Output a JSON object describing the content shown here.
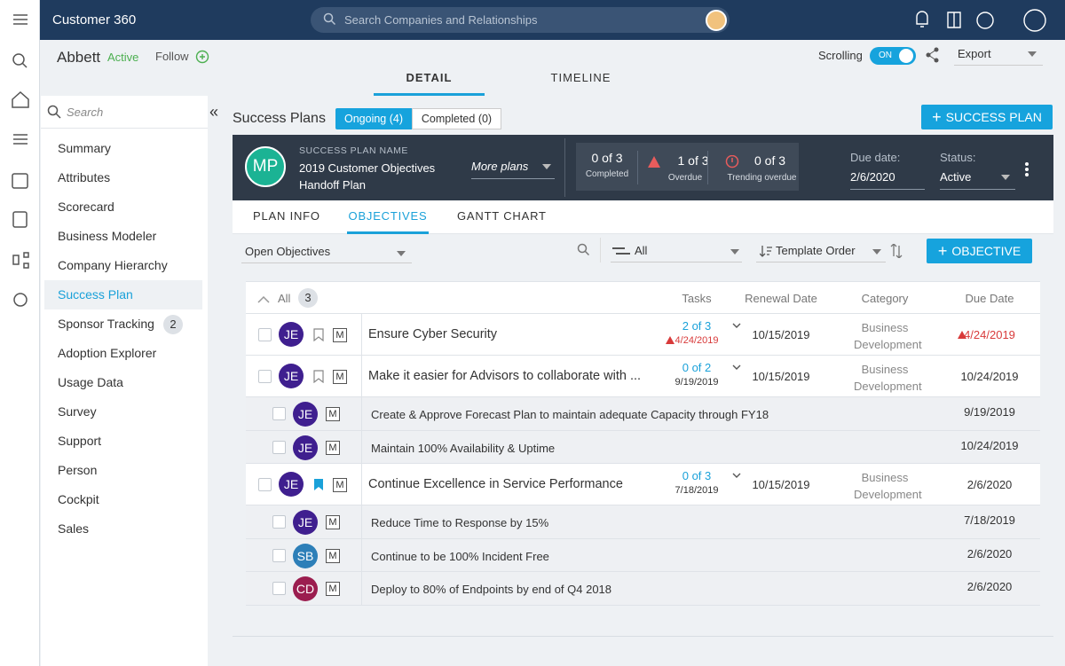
{
  "app": {
    "title": "Customer 360",
    "search_placeholder": "Search Companies and Relationships"
  },
  "company": {
    "name": "Abbett",
    "status": "Active",
    "follow": "Follow"
  },
  "scrolling": {
    "label": "Scrolling",
    "toggle": "ON"
  },
  "export": "Export",
  "tabs": [
    "DETAIL",
    "TIMELINE"
  ],
  "sidebar": {
    "search": "Search",
    "items": [
      {
        "label": "Summary"
      },
      {
        "label": "Attributes"
      },
      {
        "label": "Scorecard"
      },
      {
        "label": "Business Modeler"
      },
      {
        "label": "Company Hierarchy"
      },
      {
        "label": "Success Plan",
        "active": true
      },
      {
        "label": "Sponsor Tracking",
        "badge": 2
      },
      {
        "label": "Adoption Explorer"
      },
      {
        "label": "Usage Data"
      },
      {
        "label": "Survey"
      },
      {
        "label": "Support"
      },
      {
        "label": "Person"
      },
      {
        "label": "Cockpit"
      },
      {
        "label": "Sales"
      }
    ]
  },
  "plans": {
    "title": "Success Plans",
    "ongoing": "Ongoing (4)",
    "completed": "Completed (0)",
    "add_button": "SUCCESS PLAN"
  },
  "plan": {
    "avatar": "MP",
    "name_label": "SUCCESS PLAN NAME",
    "name": "2019 Customer Objectives Handoff Plan",
    "more": "More plans",
    "stats": [
      {
        "value": "0 of 3",
        "label": "Completed"
      },
      {
        "value": "1 of 3",
        "label": "Overdue"
      },
      {
        "value": "0 of 3",
        "label": "Trending overdue"
      }
    ],
    "due_label": "Due date:",
    "due": "2/6/2020",
    "status_label": "Status:",
    "status": "Active"
  },
  "subtabs": [
    "PLAN INFO",
    "OBJECTIVES",
    "GANTT CHART"
  ],
  "filters": {
    "view": "Open Objectives",
    "owner": "All",
    "order": "Template Order",
    "add_button": "OBJECTIVE"
  },
  "table": {
    "all": "All",
    "count": 3,
    "columns": [
      "Tasks",
      "Renewal Date",
      "Category",
      "Due Date"
    ],
    "rows": [
      {
        "avatar": "JE",
        "priority": "M",
        "title": "Ensure Cyber Security",
        "tasks": "2 of 3",
        "task_date": "4/24/2019",
        "overdue": true,
        "renewal": "10/15/2019",
        "category": "Business Development",
        "due": "4/24/2019",
        "subtasks": []
      },
      {
        "avatar": "JE",
        "priority": "M",
        "title": "Make it easier for Advisors to collaborate with ...",
        "tasks": "0 of 2",
        "task_date": "9/19/2019",
        "renewal": "10/15/2019",
        "category": "Business Development",
        "due": "10/24/2019",
        "subtasks": [
          {
            "avatar": "JE",
            "priority": "M",
            "title": "Create & Approve Forecast Plan to maintain adequate Capacity through FY18",
            "due": "9/19/2019"
          },
          {
            "avatar": "JE",
            "priority": "M",
            "title": "Maintain 100% Availability & Uptime",
            "due": "10/24/2019"
          }
        ]
      },
      {
        "avatar": "JE",
        "priority": "M",
        "title": "Continue Excellence in Service Performance",
        "tasks": "0 of 3",
        "task_date": "7/18/2019",
        "bookmarked": true,
        "renewal": "10/15/2019",
        "category": "Business Development",
        "due": "2/6/2020",
        "subtasks": [
          {
            "avatar": "JE",
            "priority": "M",
            "title": "Reduce Time to Response by 15%",
            "due": "7/18/2019"
          },
          {
            "avatar": "SB",
            "priority": "M",
            "title": "Continue to be 100% Incident Free",
            "due": "2/6/2020"
          },
          {
            "avatar": "CD",
            "priority": "M",
            "title": "Deploy to 80% of Endpoints by end of Q4 2018",
            "due": "2/6/2020"
          }
        ]
      }
    ]
  }
}
